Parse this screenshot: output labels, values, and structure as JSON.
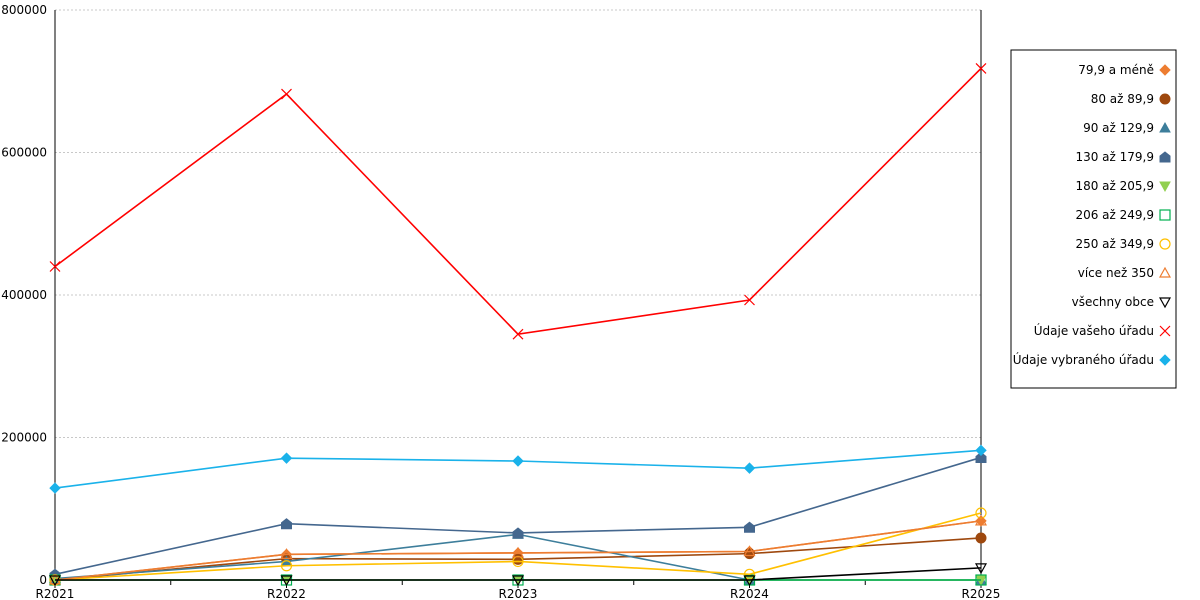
{
  "chart_data": {
    "type": "line",
    "categories": [
      "R2021",
      "R2022",
      "R2023",
      "R2024",
      "R2025"
    ],
    "y_ticks": [
      "0",
      "200000",
      "400000",
      "600000",
      "800000"
    ],
    "ylim": [
      0,
      800000
    ],
    "grid": true,
    "legend_placement": "right",
    "series": [
      {
        "name": "79,9 a méně",
        "color": "#ed7d31",
        "marker": "diamond",
        "values": [
          0,
          36000,
          38000,
          40000,
          83000
        ]
      },
      {
        "name": "80 až 89,9",
        "color": "#9e480e",
        "marker": "circle",
        "values": [
          0,
          30000,
          29000,
          37000,
          59000
        ]
      },
      {
        "name": "90 až 129,9",
        "color": "#3d7e9b",
        "marker": "triangle",
        "values": [
          2000,
          26000,
          64000,
          0,
          0
        ]
      },
      {
        "name": "130 až 179,9",
        "color": "#44678e",
        "marker": "house",
        "values": [
          8000,
          79000,
          66000,
          74000,
          172000
        ]
      },
      {
        "name": "180 až 205,9",
        "color": "#92d050",
        "marker": "triangle-down",
        "values": [
          0,
          0,
          0,
          0,
          0
        ]
      },
      {
        "name": "206 až 249,9",
        "color": "#00b050",
        "marker": "square-open",
        "values": [
          0,
          0,
          0,
          0,
          0
        ]
      },
      {
        "name": "250 až 349,9",
        "color": "#ffc000",
        "marker": "circle-open",
        "values": [
          0,
          20000,
          26000,
          8000,
          94000
        ]
      },
      {
        "name": "více než 350",
        "color": "#ed7d31",
        "marker": "triangle-open",
        "values": [
          0,
          36000,
          38000,
          40000,
          83000
        ]
      },
      {
        "name": "všechny obce",
        "color": "#000000",
        "marker": "triangle-down-open",
        "values": [
          0,
          0,
          0,
          0,
          17000
        ]
      },
      {
        "name": "Údaje vašeho úřadu",
        "color": "#ff0000",
        "marker": "x",
        "values": [
          440000,
          682000,
          345000,
          393000,
          718000
        ]
      },
      {
        "name": "Údaje vybraného úřadu",
        "color": "#1ab2ea",
        "marker": "diamond",
        "values": [
          129000,
          171000,
          167000,
          157000,
          182000
        ]
      }
    ]
  }
}
